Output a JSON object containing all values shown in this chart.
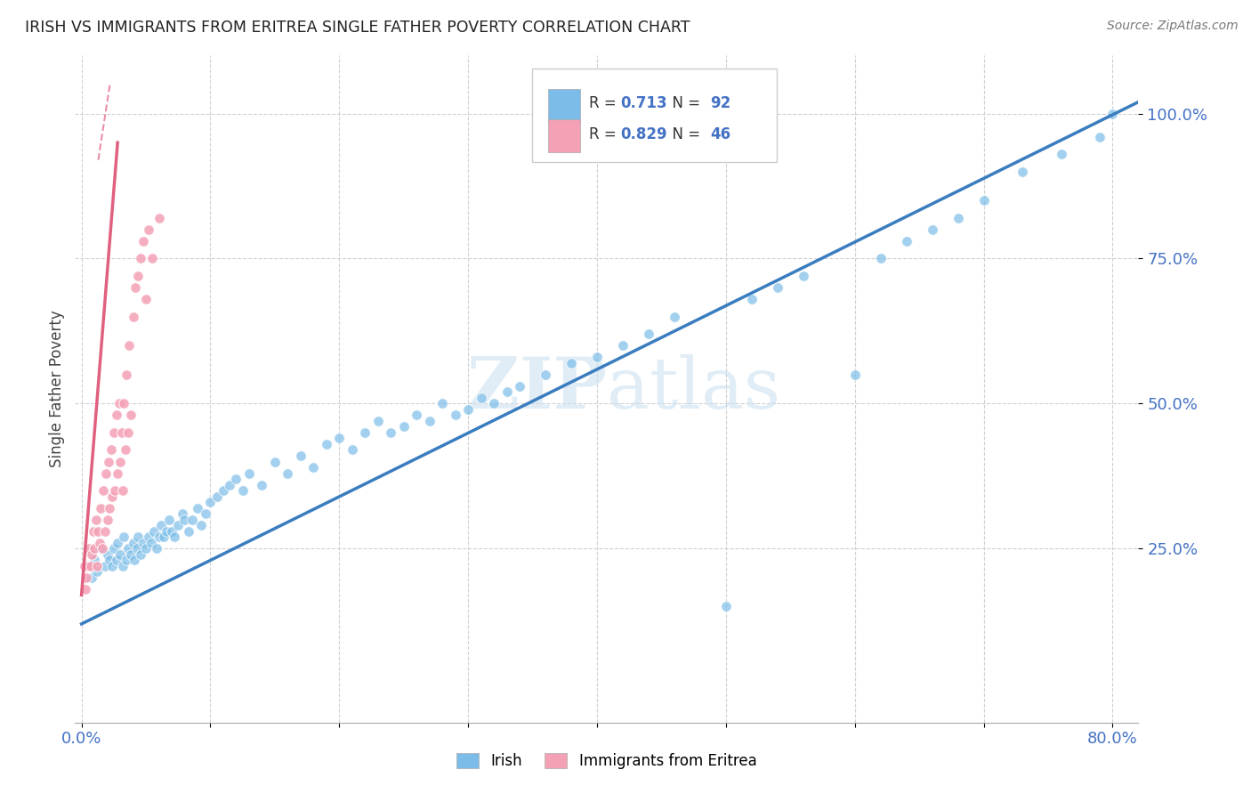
{
  "title": "IRISH VS IMMIGRANTS FROM ERITREA SINGLE FATHER POVERTY CORRELATION CHART",
  "source": "Source: ZipAtlas.com",
  "ylabel": "Single Father Poverty",
  "xlim": [
    -0.005,
    0.82
  ],
  "ylim": [
    -0.05,
    1.1
  ],
  "xtick_positions": [
    0.0,
    0.1,
    0.2,
    0.3,
    0.4,
    0.5,
    0.6,
    0.7,
    0.8
  ],
  "xticklabels": [
    "0.0%",
    "",
    "",
    "",
    "",
    "",
    "",
    "",
    "80.0%"
  ],
  "ytick_positions": [
    0.25,
    0.5,
    0.75,
    1.0
  ],
  "yticklabels": [
    "25.0%",
    "50.0%",
    "75.0%",
    "100.0%"
  ],
  "blue_R": 0.713,
  "blue_N": 92,
  "pink_R": 0.829,
  "pink_N": 46,
  "blue_color": "#7bbde8",
  "pink_color": "#f4a0b5",
  "blue_line_color": "#3a7dbf",
  "pink_line_color": "#e06080",
  "legend_label_blue": "Irish",
  "legend_label_pink": "Immigrants from Eritrea"
}
